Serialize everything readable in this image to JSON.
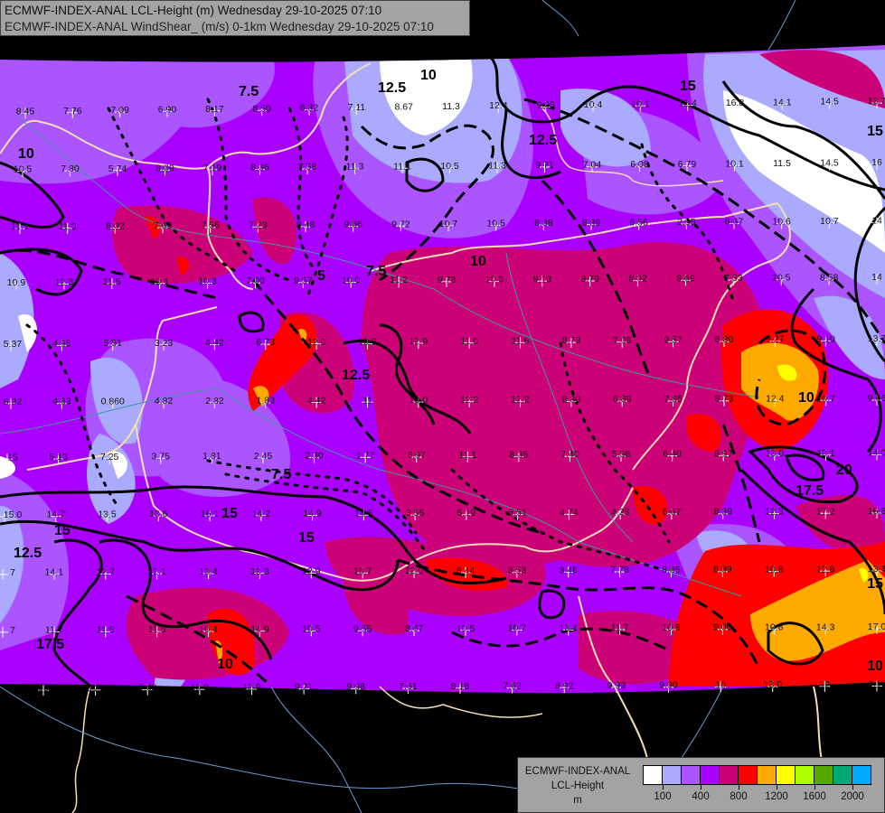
{
  "header": {
    "line1": "ECMWF-INDEX-ANAL LCL-Height (m) Wednesday 29-10-2025 07:10",
    "line2": "ECMWF-INDEX-ANAL WindShear_ (m/s) 0-1km Wednesday 29-10-2025 07:10"
  },
  "legend": {
    "line1": "ECMWF-INDEX-ANAL",
    "line2": "LCL-Height",
    "unit": "m",
    "colors": [
      "#ffffff",
      "#aaaaff",
      "#aa55ff",
      "#aa00ff",
      "#cc0077",
      "#ff0000",
      "#ffaa00",
      "#ffff00",
      "#aaff00",
      "#55aa00",
      "#00aa77",
      "#00aaff"
    ],
    "labels": [
      "100",
      "400",
      "800",
      "1200",
      "1600",
      "2000"
    ]
  },
  "map": {
    "colors": {
      "white": "#ffffff",
      "lavender": "#aaaaff",
      "light_purple": "#aa55ff",
      "purple": "#aa00ff",
      "magenta": "#cc0077",
      "red": "#ff0000",
      "orange": "#ffaa00",
      "yellow": "#ffff00",
      "border": "#f5deb3",
      "river": "#3a9a9a",
      "outside_border": "#6a9ad0"
    },
    "contour_labels": [
      "10",
      "12.5",
      "15",
      "7.5",
      "12.5",
      "15",
      "10",
      "7.5",
      "5",
      "10",
      "12.5",
      "7.5",
      "15",
      "20",
      "17.5",
      "10",
      "15",
      "12.5",
      "10",
      "15",
      "17.5",
      "10",
      "15"
    ],
    "station_values": [
      [
        "8.45",
        "7.76",
        "7.09",
        "6.90",
        "8.17",
        "8.50",
        "6.82",
        "7.11",
        "8.67",
        "11.3",
        "12.4",
        "9.05",
        "10.4",
        "10.1",
        "12.4",
        "16.8",
        "14.1",
        "14.5",
        "13.7"
      ],
      [
        "10.5",
        "7.80",
        "5.74",
        "8.09",
        "7.19",
        "8.36",
        "7.58",
        "11.3",
        "11.1",
        "10.5",
        "11.3",
        "9.71",
        "7.04",
        "6.08",
        "6.79",
        "10.1",
        "11.5",
        "14.5",
        "16"
      ],
      [
        "11.1",
        "11.0",
        "8.02",
        "7.69",
        "7.56",
        "7.23",
        "8.48",
        "9.86",
        "9.72",
        "10.7",
        "10.5",
        "8.88",
        "8.89",
        "6.56",
        "2.95",
        "6.67",
        "10.6",
        "10.7",
        "14"
      ],
      [
        "10.9",
        "12.3",
        "11.5",
        "10.1",
        "10.3",
        "7.00",
        "9.57",
        "10.0",
        "11.2",
        "9.78",
        "10.3",
        "9.13",
        "8.79",
        "8.02",
        "8.69",
        "7.53",
        "10.5",
        "8.58",
        "14"
      ],
      [
        "5.37",
        "4.95",
        "5.51",
        "3.23",
        "4.42",
        "6.73",
        "12.0",
        "13.3",
        "12.9",
        "11.0",
        "11.6",
        "8.73",
        "7.08",
        "9.57",
        "8.80",
        "9.27",
        "9.10",
        "13.7"
      ],
      [
        "6.32",
        "4.83",
        "0.860",
        "4.82",
        "2.82",
        "1.83",
        "4.42",
        "11",
        "13.0",
        "12.2",
        "12.2",
        "8.80",
        "6.89",
        "7.85",
        "8.73",
        "12.4",
        "10.7",
        "9.66"
      ],
      [
        "15",
        "5.13",
        "7.25",
        "3.75",
        "1.81",
        "2.45",
        "2.30",
        "1.77",
        "6.97",
        "11.1",
        "8.35",
        "7.40",
        "5.58",
        "6.40",
        "6.97",
        "13.0",
        "13.1",
        "14.0"
      ],
      [
        "15.0",
        "14.7",
        "13.5",
        "13.6",
        "16.1",
        "14.2",
        "14.9",
        "14.5",
        "3.55",
        "5.19",
        "5.51",
        "4.74",
        "4.28",
        "6.67",
        "8.89",
        "12.3",
        "17.2",
        "16.8"
      ],
      [
        "7",
        "14.1",
        "12.7",
        "12.1",
        "13.4",
        "13.3",
        "12.9",
        "13.7",
        "12.0",
        "8.44",
        "3.53",
        "3.48",
        "7.78",
        "8.85",
        "8.89",
        "10.8",
        "12.8",
        "13.4"
      ],
      [
        "7",
        "11.7",
        "11.5",
        "11.5",
        "10.4",
        "14.9",
        "10.5",
        "9.55",
        "8.67",
        "10.5",
        "10.7",
        "13.1",
        "11.7",
        "10.8",
        "9.00",
        "10.8",
        "14.3",
        "17.0"
      ],
      [
        "15",
        "8.22",
        "7.62",
        "10.8",
        "12.9",
        "9.21",
        "9.98",
        "7.61",
        "8.18",
        "7.62",
        "8.92",
        "9.99",
        "9.90",
        "10",
        "13.0",
        "12",
        "9.11"
      ]
    ]
  }
}
